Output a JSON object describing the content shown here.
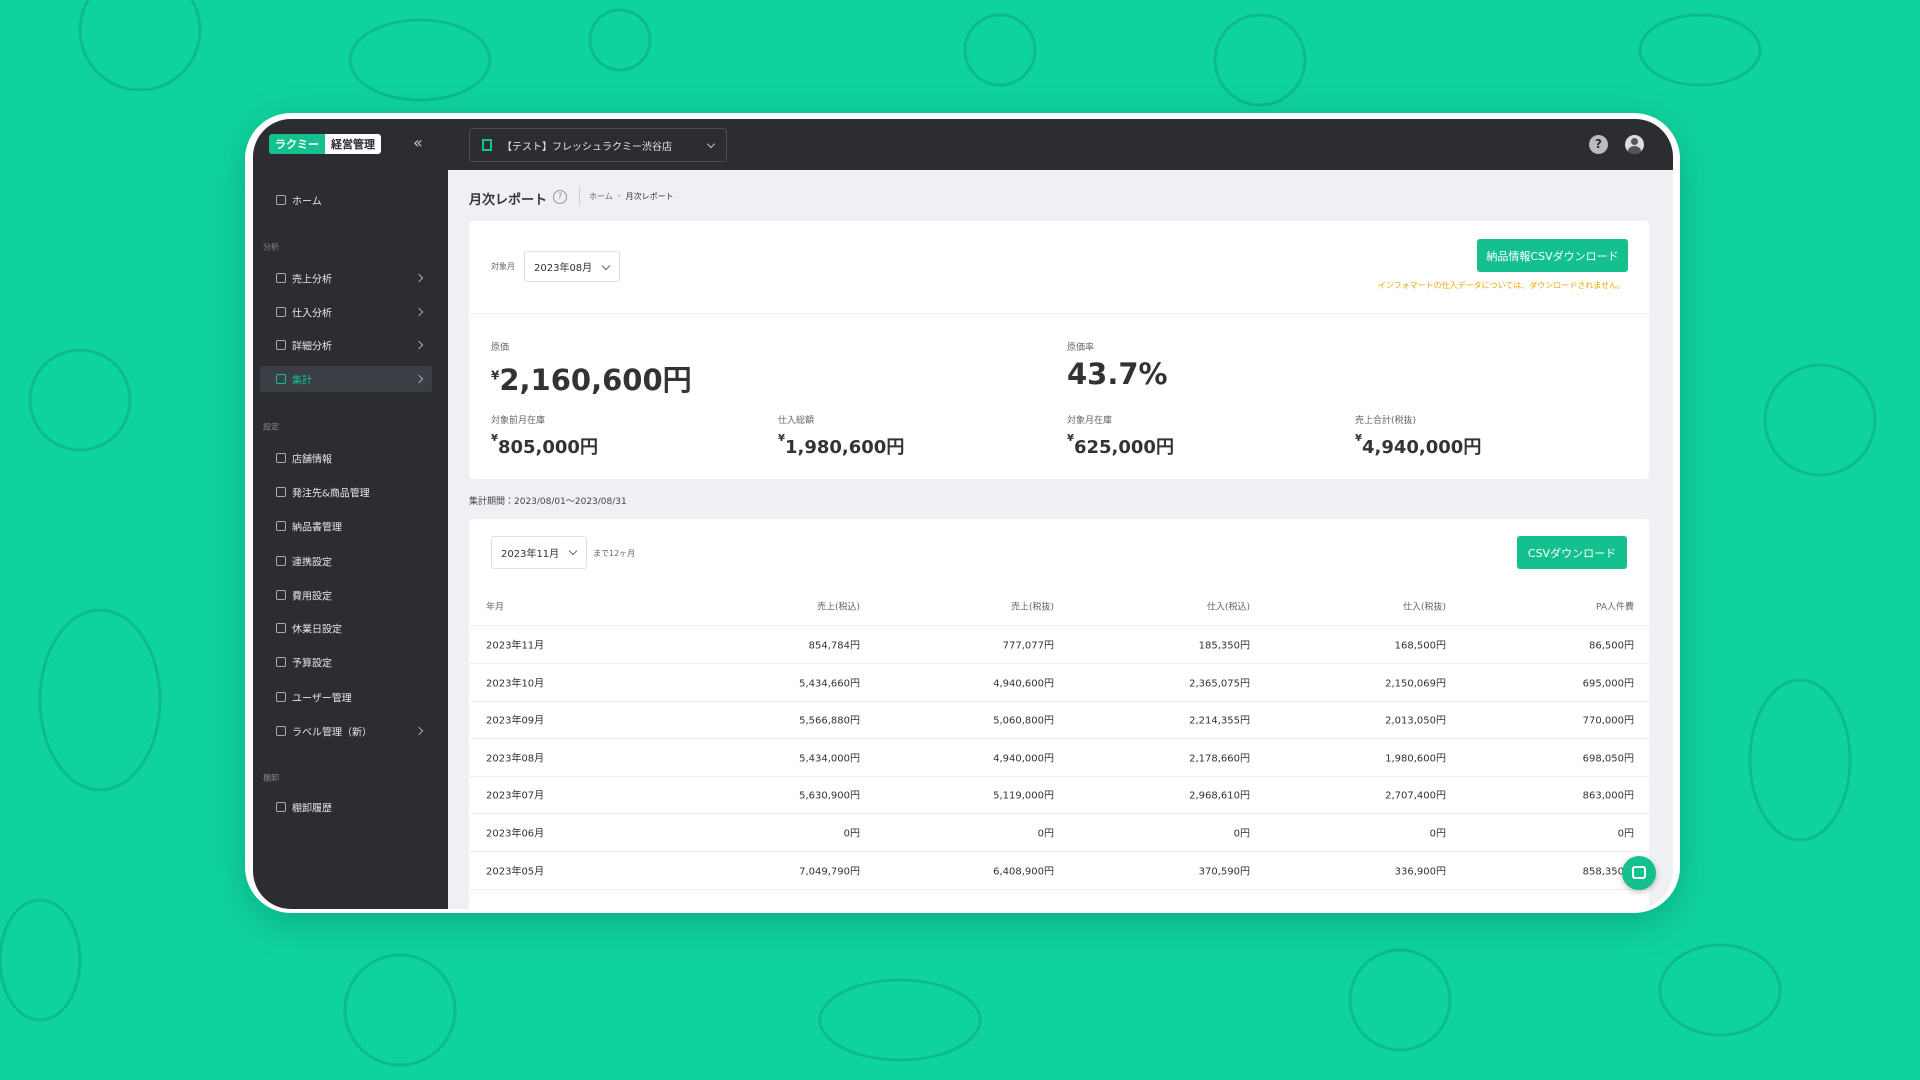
{
  "app": {
    "logo_left": "ラクミー",
    "logo_right": "経営管理",
    "store": "【テスト】フレッシュラクミー渋谷店"
  },
  "sidebar": [
    {
      "label": "ホーム"
    },
    {
      "heading": "分析"
    },
    {
      "label": "売上分析",
      "expandable": true
    },
    {
      "label": "仕入分析",
      "expandable": true
    },
    {
      "label": "詳細分析",
      "expandable": true
    },
    {
      "label": "集計",
      "expandable": true,
      "active": true
    },
    {
      "heading": "設定"
    },
    {
      "label": "店舗情報"
    },
    {
      "label": "発注先&商品管理"
    },
    {
      "label": "納品書管理"
    },
    {
      "label": "連携設定"
    },
    {
      "label": "費用設定"
    },
    {
      "label": "休業日設定"
    },
    {
      "label": "予算設定"
    },
    {
      "label": "ユーザー管理"
    },
    {
      "label": "ラベル管理（新）",
      "expandable": true
    },
    {
      "heading": "棚卸"
    },
    {
      "label": "棚卸履歴"
    }
  ],
  "page": {
    "title": "月次レポート",
    "breadcrumb": [
      "ホーム",
      "月次レポート"
    ]
  },
  "summary": {
    "month_label": "対象月",
    "month": "2023年08月",
    "download": "納品情報CSVダウンロード",
    "note": "インフォマートの仕入データについては、ダウンロードされません。",
    "currency": "¥",
    "cost_label": "原価",
    "cost": "2,160,600円",
    "rate_label": "原価率",
    "rate": "43.7%",
    "metrics": [
      {
        "label": "対象前月在庫",
        "value": "805,000円"
      },
      {
        "label": "仕入総額",
        "value": "1,980,600円"
      },
      {
        "label": "対象月在庫",
        "value": "625,000円"
      },
      {
        "label": "売上合計(税抜)",
        "value": "4,940,000円"
      }
    ]
  },
  "period": "集計期間：2023/08/01〜2023/08/31",
  "table": {
    "month": "2023年11月",
    "range": "まで12ヶ月",
    "download": "CSVダウンロード",
    "columns": [
      "年月",
      "売上(税込)",
      "売上(税抜)",
      "仕入(税込)",
      "仕入(税抜)",
      "PA人件費"
    ],
    "rows": [
      [
        "2023年11月",
        "854,784円",
        "777,077円",
        "185,350円",
        "168,500円",
        "86,500円"
      ],
      [
        "2023年10月",
        "5,434,660円",
        "4,940,600円",
        "2,365,075円",
        "2,150,069円",
        "695,000円"
      ],
      [
        "2023年09月",
        "5,566,880円",
        "5,060,800円",
        "2,214,355円",
        "2,013,050円",
        "770,000円"
      ],
      [
        "2023年08月",
        "5,434,000円",
        "4,940,000円",
        "2,178,660円",
        "1,980,600円",
        "698,050円"
      ],
      [
        "2023年07月",
        "5,630,900円",
        "5,119,000円",
        "2,968,610円",
        "2,707,400円",
        "863,000円"
      ],
      [
        "2023年06月",
        "0円",
        "0円",
        "0円",
        "0円",
        "0円"
      ],
      [
        "2023年05月",
        "7,049,790円",
        "6,408,900円",
        "370,590円",
        "336,900円",
        "858,350円"
      ]
    ]
  }
}
